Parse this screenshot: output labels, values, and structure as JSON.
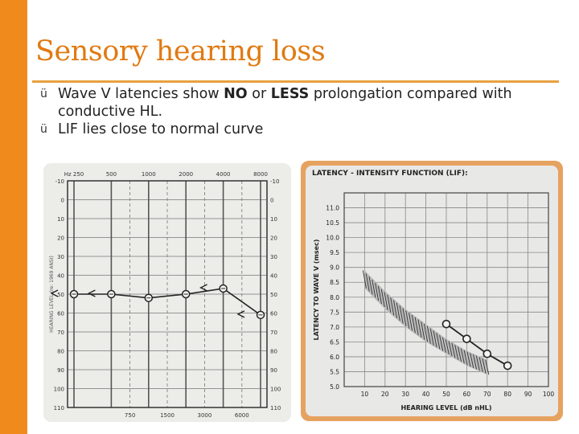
{
  "slide": {
    "title": "Sensory hearing loss",
    "bullets": [
      {
        "check": "ü",
        "pre": "Wave V latencies show ",
        "b1": "NO",
        "mid": " or ",
        "b2": "LESS",
        "post": " prolongation compared with conductive HL."
      },
      {
        "check": "ü",
        "text": "LIF lies close to normal curve"
      }
    ]
  },
  "audiogram": {
    "freq_top": [
      "Hz 250",
      "500",
      "1000",
      "2000",
      "4000",
      "8000"
    ],
    "freq_bottom": [
      "750",
      "1500",
      "3000",
      "6000"
    ],
    "levels": [
      "-10",
      "0",
      "10",
      "20",
      "30",
      "40",
      "50",
      "60",
      "70",
      "80",
      "90",
      "100",
      "110"
    ],
    "ylabel": "HEARING LEVEL (re: 1969 ANSI)",
    "series_db": [
      50,
      50,
      52,
      50,
      47,
      61
    ]
  },
  "chart_data": {
    "type": "line",
    "title": "LATENCY - INTENSITY FUNCTION (LIF):",
    "xlabel": "HEARING LEVEL (dB nHL)",
    "ylabel": "LATENCY TO WAVE V (msec)",
    "x_ticks": [
      "10",
      "20",
      "30",
      "40",
      "50",
      "60",
      "70",
      "80",
      "90",
      "100"
    ],
    "y_ticks": [
      "11.0",
      "10.5",
      "10.0",
      "9.5",
      "9.0",
      "8.5",
      "8.0",
      "7.5",
      "7.0",
      "6.5",
      "6.0",
      "5.5",
      "5.0"
    ],
    "xlim": [
      0,
      100
    ],
    "ylim": [
      5.0,
      11.5
    ],
    "series": [
      {
        "name": "Wave V",
        "x": [
          50,
          60,
          70,
          80
        ],
        "y": [
          7.1,
          6.6,
          6.1,
          5.7
        ]
      }
    ],
    "normal_band": {
      "x": [
        10,
        20,
        30,
        40,
        50,
        60,
        70
      ],
      "upper": [
        8.9,
        8.2,
        7.6,
        7.1,
        6.6,
        6.2,
        5.9
      ],
      "lower": [
        8.3,
        7.6,
        7.0,
        6.5,
        6.1,
        5.7,
        5.4
      ]
    }
  }
}
